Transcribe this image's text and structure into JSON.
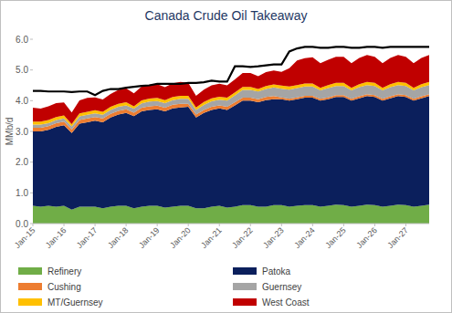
{
  "chart_data": {
    "type": "area",
    "stacked": true,
    "grid": false,
    "title": "Canada Crude Oil Takeaway",
    "y_label": "MMb/d",
    "categories": [
      "Jan-15",
      null,
      null,
      null,
      "Jan-16",
      null,
      null,
      null,
      "Jan-17",
      null,
      null,
      null,
      "Jan-18",
      null,
      null,
      null,
      "Jan-19",
      null,
      null,
      null,
      "Jan-20",
      null,
      null,
      null,
      "Jan-21",
      null,
      null,
      null,
      "Jan-22",
      null,
      null,
      null,
      "Jan-23",
      null,
      null,
      null,
      "Jan-24",
      null,
      null,
      null,
      "Jan-25",
      null,
      null,
      null,
      "Jan-26",
      null,
      null,
      null,
      "Jan-27",
      null,
      null,
      null
    ],
    "ylim": [
      0,
      6
    ],
    "yticks": [
      {
        "value": 0,
        "label": "0.0"
      },
      {
        "value": 1,
        "label": "1.0"
      },
      {
        "value": 2,
        "label": "2.0"
      },
      {
        "value": 3,
        "label": "3.0"
      },
      {
        "value": 4,
        "label": "4.0"
      },
      {
        "value": 5,
        "label": "5.0"
      },
      {
        "value": 6,
        "label": "6.0"
      }
    ],
    "series": [
      {
        "name": "Refinery",
        "color": "#70ad47",
        "values": [
          0.58,
          0.55,
          0.58,
          0.55,
          0.58,
          0.45,
          0.55,
          0.55,
          0.55,
          0.5,
          0.55,
          0.58,
          0.58,
          0.5,
          0.55,
          0.58,
          0.58,
          0.52,
          0.55,
          0.58,
          0.58,
          0.5,
          0.5,
          0.55,
          0.58,
          0.52,
          0.55,
          0.6,
          0.6,
          0.55,
          0.55,
          0.6,
          0.6,
          0.55,
          0.58,
          0.6,
          0.6,
          0.55,
          0.58,
          0.62,
          0.6,
          0.55,
          0.58,
          0.62,
          0.6,
          0.55,
          0.58,
          0.62,
          0.6,
          0.55,
          0.58,
          0.62
        ]
      },
      {
        "name": "Patoka",
        "color": "#0b1f5c",
        "values": [
          2.42,
          2.45,
          2.47,
          2.6,
          2.62,
          2.5,
          2.7,
          2.75,
          2.8,
          2.8,
          2.9,
          2.97,
          3.02,
          3.0,
          3.1,
          3.12,
          3.14,
          3.13,
          3.2,
          3.2,
          3.22,
          2.95,
          3.1,
          3.15,
          3.17,
          3.18,
          3.3,
          3.4,
          3.4,
          3.4,
          3.47,
          3.45,
          3.45,
          3.45,
          3.47,
          3.5,
          3.5,
          3.45,
          3.47,
          3.5,
          3.52,
          3.45,
          3.5,
          3.53,
          3.52,
          3.45,
          3.5,
          3.53,
          3.52,
          3.45,
          3.5,
          3.53
        ]
      },
      {
        "name": "Cushing",
        "color": "#ed7d31",
        "values": [
          0.12,
          0.12,
          0.12,
          0.12,
          0.12,
          0.11,
          0.12,
          0.12,
          0.12,
          0.12,
          0.12,
          0.12,
          0.12,
          0.11,
          0.12,
          0.12,
          0.12,
          0.12,
          0.12,
          0.12,
          0.1,
          0.1,
          0.1,
          0.1,
          0.1,
          0.1,
          0.1,
          0.1,
          0.1,
          0.1,
          0.1,
          0.1,
          0.06,
          0.06,
          0.06,
          0.06,
          0.06,
          0.06,
          0.06,
          0.06,
          0.06,
          0.06,
          0.06,
          0.06,
          0.06,
          0.06,
          0.06,
          0.06,
          0.06,
          0.06,
          0.06,
          0.06
        ]
      },
      {
        "name": "Guernsey",
        "color": "#a5a5a5",
        "values": [
          0.1,
          0.1,
          0.1,
          0.1,
          0.1,
          0.1,
          0.12,
          0.12,
          0.12,
          0.12,
          0.13,
          0.13,
          0.13,
          0.13,
          0.14,
          0.15,
          0.15,
          0.15,
          0.15,
          0.16,
          0.16,
          0.15,
          0.16,
          0.18,
          0.18,
          0.2,
          0.22,
          0.25,
          0.25,
          0.25,
          0.26,
          0.28,
          0.28,
          0.3,
          0.3,
          0.3,
          0.3,
          0.28,
          0.3,
          0.3,
          0.3,
          0.28,
          0.3,
          0.3,
          0.3,
          0.28,
          0.3,
          0.3,
          0.3,
          0.28,
          0.3,
          0.3
        ]
      },
      {
        "name": "MT/Guernsey",
        "color": "#ffc000",
        "values": [
          0.1,
          0.1,
          0.1,
          0.1,
          0.1,
          0.08,
          0.1,
          0.1,
          0.1,
          0.1,
          0.1,
          0.1,
          0.1,
          0.08,
          0.1,
          0.1,
          0.1,
          0.1,
          0.1,
          0.1,
          0.1,
          0.08,
          0.1,
          0.1,
          0.1,
          0.1,
          0.1,
          0.1,
          0.1,
          0.08,
          0.1,
          0.1,
          0.1,
          0.1,
          0.1,
          0.1,
          0.1,
          0.08,
          0.1,
          0.1,
          0.1,
          0.08,
          0.1,
          0.1,
          0.1,
          0.08,
          0.1,
          0.1,
          0.1,
          0.08,
          0.1,
          0.1
        ]
      },
      {
        "name": "West Coast",
        "color": "#c00000",
        "values": [
          0.45,
          0.42,
          0.45,
          0.45,
          0.42,
          0.38,
          0.42,
          0.45,
          0.42,
          0.4,
          0.42,
          0.45,
          0.45,
          0.42,
          0.45,
          0.45,
          0.45,
          0.42,
          0.45,
          0.45,
          0.42,
          0.38,
          0.4,
          0.42,
          0.42,
          0.4,
          0.42,
          0.45,
          0.45,
          0.42,
          0.45,
          0.45,
          0.45,
          0.6,
          0.8,
          0.82,
          0.85,
          0.8,
          0.82,
          0.85,
          0.85,
          0.8,
          0.85,
          0.88,
          0.85,
          0.8,
          0.85,
          0.88,
          0.85,
          0.8,
          0.85,
          0.88
        ]
      },
      {
        "type": "line",
        "color": "#000000",
        "values": [
          4.32,
          4.32,
          4.3,
          4.3,
          4.3,
          4.28,
          4.3,
          4.3,
          4.18,
          4.32,
          4.38,
          4.38,
          4.42,
          4.45,
          4.48,
          4.5,
          4.55,
          4.55,
          4.55,
          4.55,
          4.58,
          4.58,
          4.6,
          4.65,
          4.62,
          4.62,
          5.12,
          5.12,
          5.1,
          5.12,
          5.15,
          5.18,
          5.18,
          5.6,
          5.7,
          5.75,
          5.75,
          5.72,
          5.72,
          5.75,
          5.75,
          5.72,
          5.72,
          5.75,
          5.75,
          5.72,
          5.75,
          5.75,
          5.75,
          5.75,
          5.75,
          5.75
        ]
      }
    ]
  }
}
